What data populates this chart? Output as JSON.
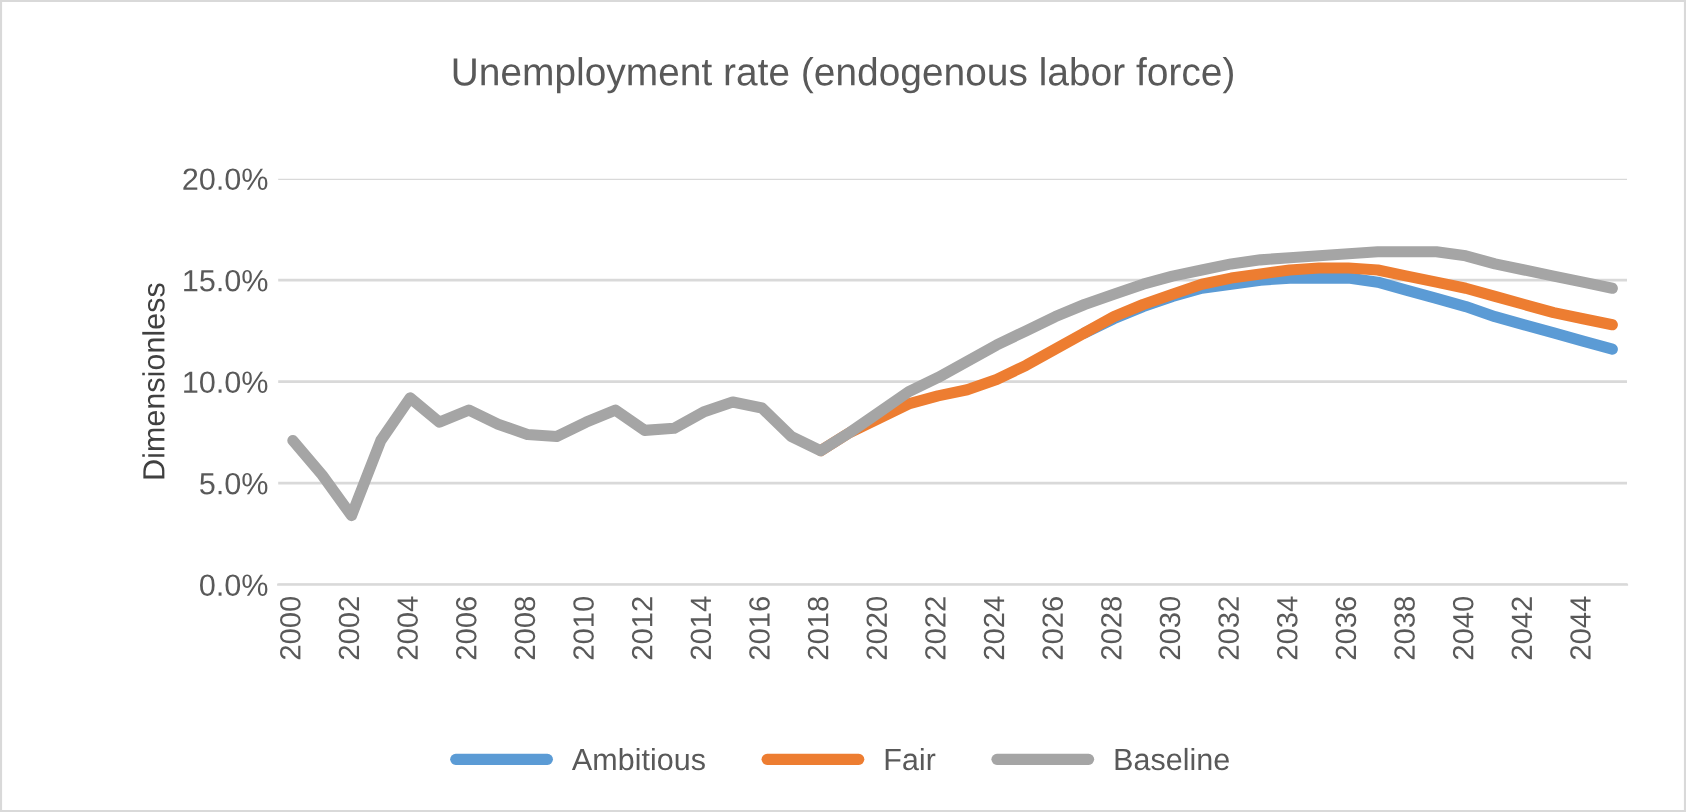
{
  "chart_data": {
    "type": "line",
    "title": "Unemployment rate (endogenous labor force)",
    "ylabel": "Dimensionless",
    "categories": [
      "2000",
      null,
      "2002",
      null,
      "2004",
      null,
      "2006",
      null,
      "2008",
      null,
      "2010",
      null,
      "2012",
      null,
      "2014",
      null,
      "2016",
      null,
      "2018",
      null,
      "2020",
      null,
      "2022",
      null,
      "2024",
      null,
      "2026",
      null,
      "2028",
      null,
      "2030",
      null,
      "2032",
      null,
      "2034",
      null,
      "2036",
      null,
      "2038",
      null,
      "2040",
      null,
      "2042",
      null,
      "2044",
      null
    ],
    "series": [
      {
        "name": "Ambitious",
        "color": "#5b9bd5",
        "values": [
          null,
          null,
          null,
          null,
          null,
          null,
          null,
          null,
          null,
          null,
          null,
          null,
          null,
          null,
          null,
          null,
          null,
          null,
          null,
          null,
          null,
          null,
          null,
          null,
          null,
          null,
          null,
          12.4,
          13.1,
          13.7,
          14.2,
          14.6,
          14.8,
          15.0,
          15.1,
          15.1,
          15.1,
          14.9,
          14.5,
          14.1,
          13.7,
          13.2,
          12.8,
          12.4,
          12.0,
          11.6
        ]
      },
      {
        "name": "Fair",
        "color": "#ed7d31",
        "values": [
          null,
          null,
          null,
          null,
          null,
          null,
          null,
          null,
          null,
          null,
          null,
          null,
          null,
          null,
          null,
          null,
          null,
          null,
          6.6,
          7.5,
          8.2,
          8.9,
          9.3,
          9.6,
          10.1,
          10.8,
          11.6,
          12.4,
          13.2,
          13.8,
          14.3,
          14.8,
          15.1,
          15.3,
          15.5,
          15.6,
          15.6,
          15.5,
          15.2,
          14.9,
          14.6,
          14.2,
          13.8,
          13.4,
          13.1,
          12.8
        ]
      },
      {
        "name": "Baseline",
        "color": "#a5a5a5",
        "values": [
          7.1,
          5.4,
          3.4,
          7.1,
          9.2,
          8.0,
          8.6,
          7.9,
          7.4,
          7.3,
          8.0,
          8.6,
          7.6,
          7.7,
          8.5,
          9.0,
          8.7,
          7.3,
          6.6,
          7.5,
          8.5,
          9.5,
          10.2,
          11.0,
          11.8,
          12.5,
          13.2,
          13.8,
          14.3,
          14.8,
          15.2,
          15.5,
          15.8,
          16.0,
          16.1,
          16.2,
          16.3,
          16.4,
          16.4,
          16.4,
          16.2,
          15.8,
          15.5,
          15.2,
          14.9,
          14.6
        ]
      }
    ],
    "ylim": [
      0,
      20
    ],
    "yticks": [
      {
        "value": 0,
        "label": "0.0%"
      },
      {
        "value": 5,
        "label": "5.0%"
      },
      {
        "value": 10,
        "label": "10.0%"
      },
      {
        "value": 15,
        "label": "15.0%"
      },
      {
        "value": 20,
        "label": "20.0%"
      }
    ],
    "grid": "y",
    "legend": "bottom",
    "line_style": "solid",
    "marker": "none"
  }
}
